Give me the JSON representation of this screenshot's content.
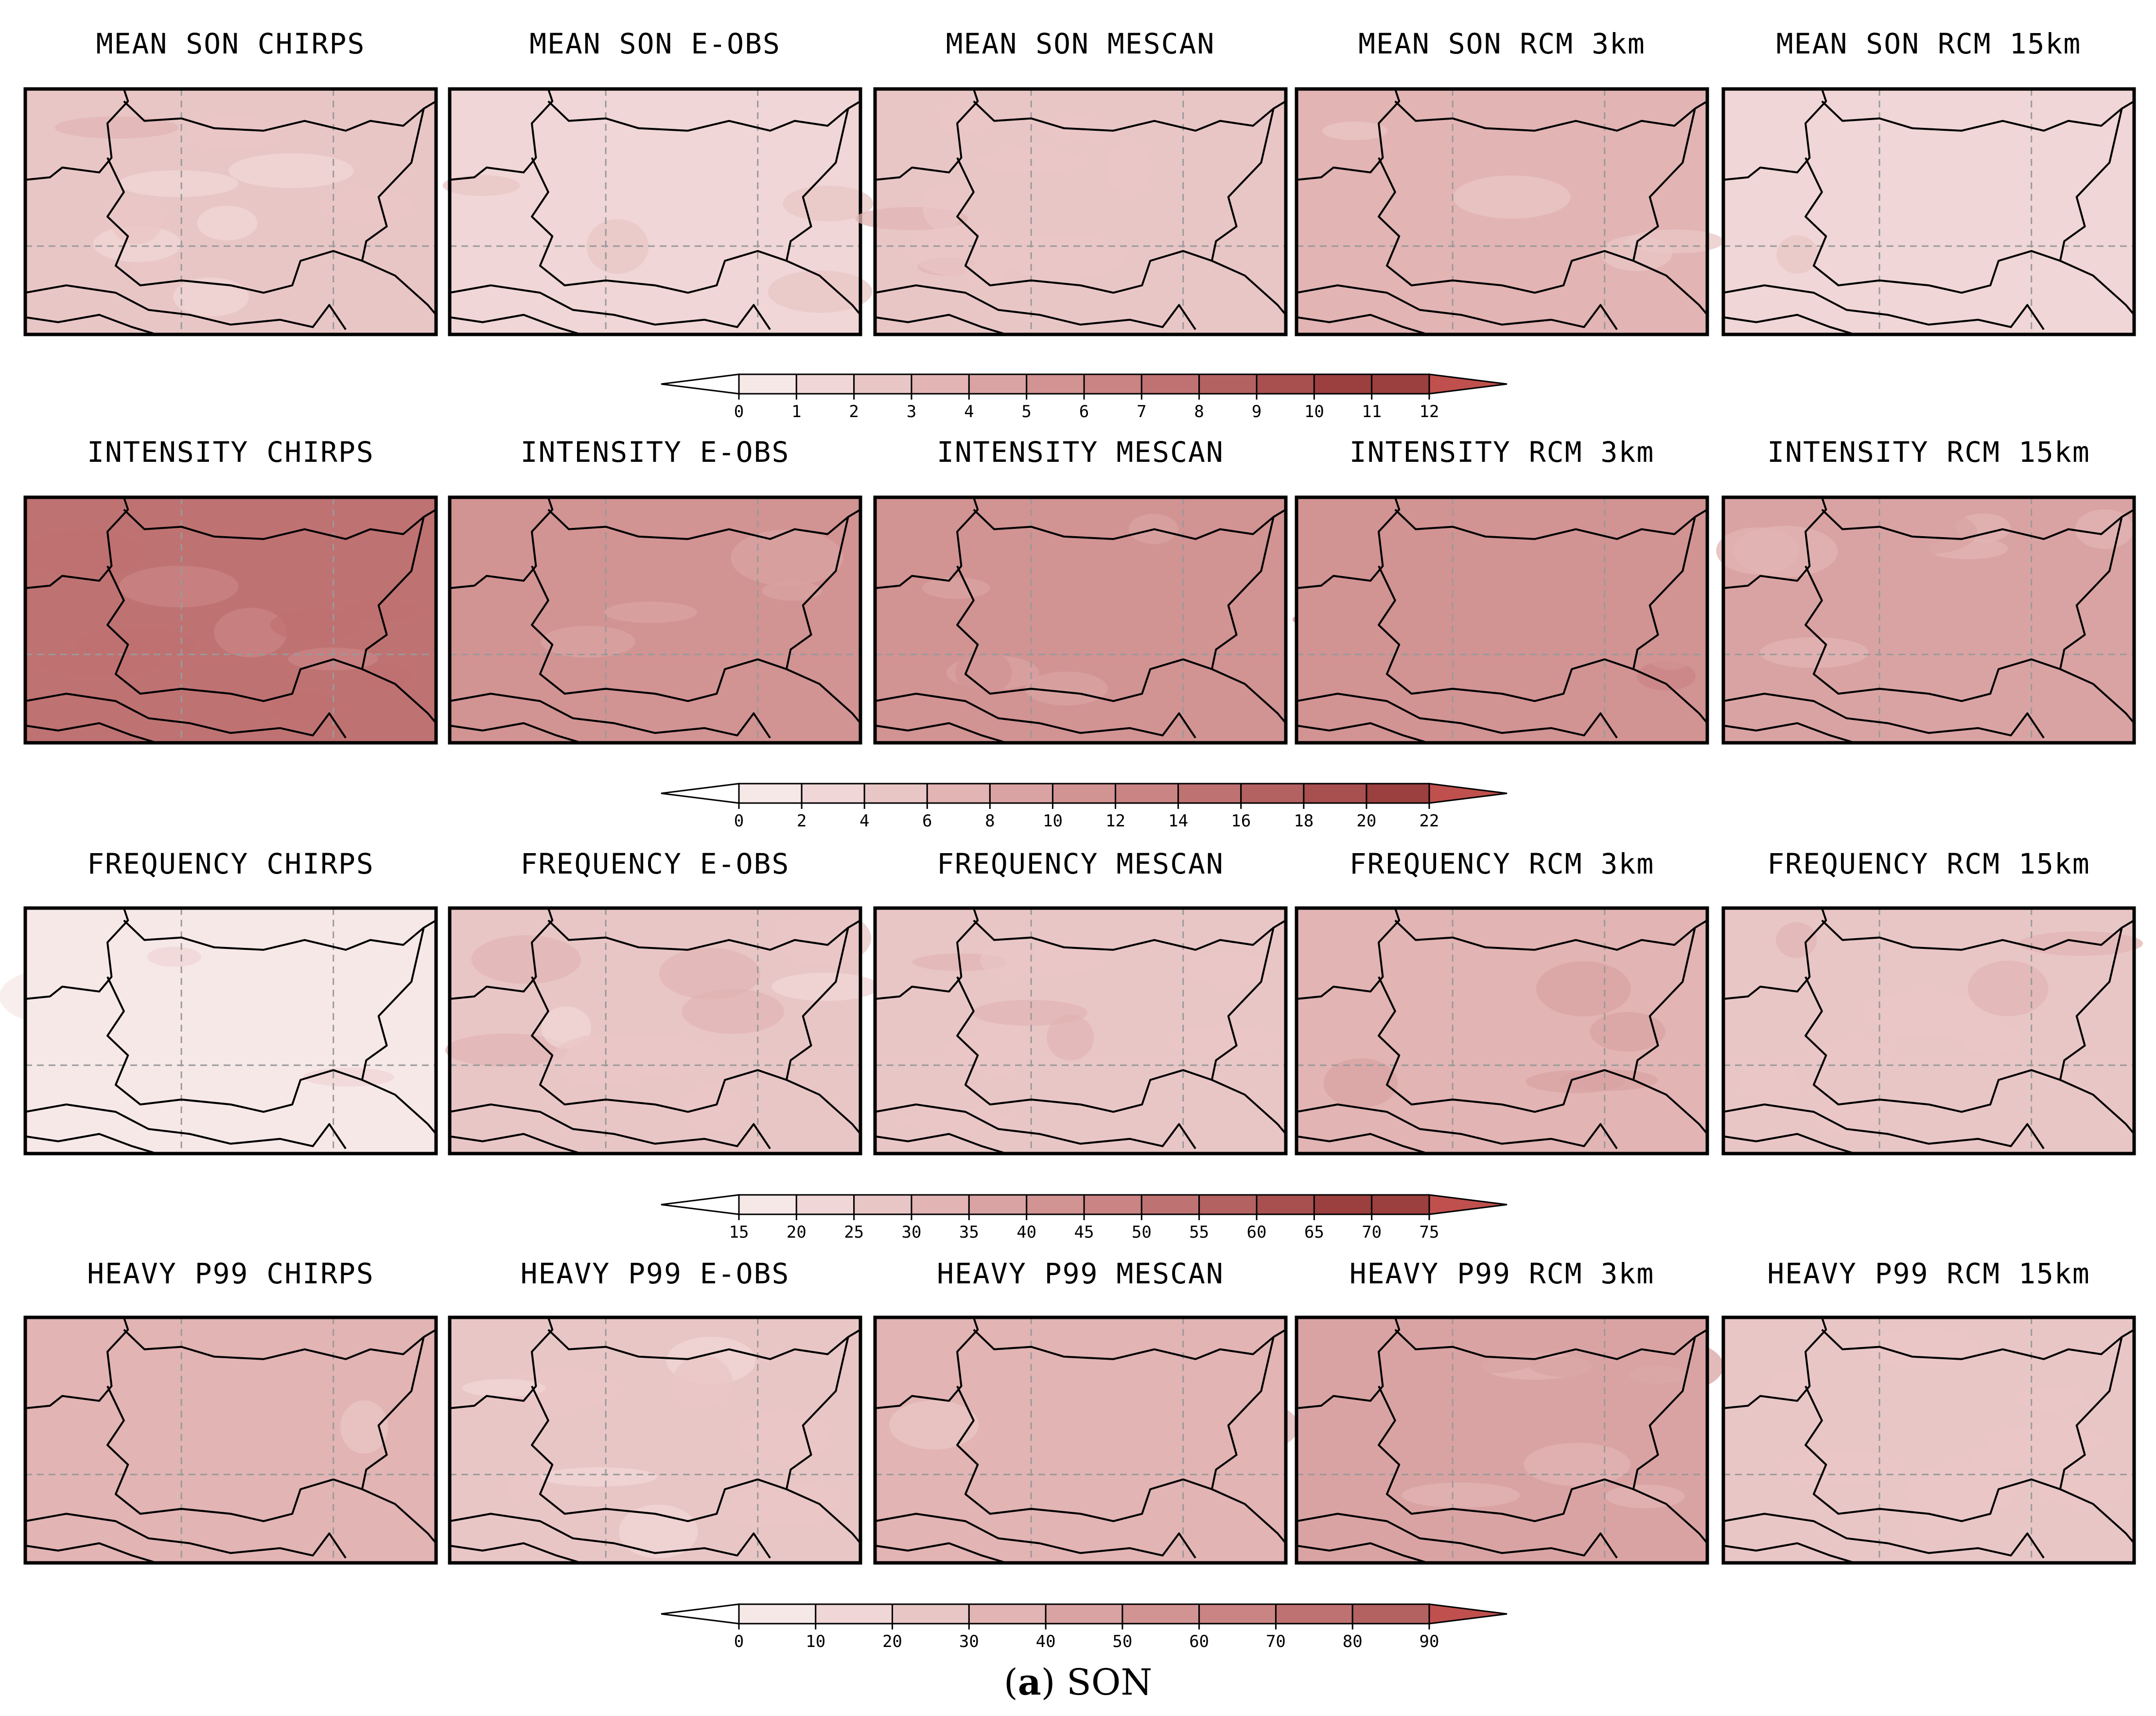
{
  "figure": {
    "caption_letter": "a",
    "caption_text": "SON",
    "colors": {
      "ramp": [
        "#ffffff",
        "#f7e8e8",
        "#f0d6d6",
        "#e9c6c6",
        "#e2b4b4",
        "#daa3a3",
        "#d29393",
        "#ca8484",
        "#bf7272",
        "#b46161",
        "#a84f4f",
        "#9c3f3f",
        "#c0504d"
      ],
      "border": "#000000",
      "grid": "#9a9a9a"
    }
  },
  "chart_data": [
    {
      "type": "heatmap",
      "row": "mean",
      "colorbar": {
        "ticks": [
          "0",
          "1",
          "2",
          "3",
          "4",
          "5",
          "6",
          "7",
          "8",
          "9",
          "10",
          "11",
          "12"
        ]
      },
      "panels": [
        {
          "title": "MEAN SON CHIRPS",
          "level": 2.2
        },
        {
          "title": "MEAN SON E-OBS",
          "level": 1.8
        },
        {
          "title": "MEAN SON MESCAN",
          "level": 2.4
        },
        {
          "title": "MEAN SON RCM 3km",
          "level": 3.0
        },
        {
          "title": "MEAN SON RCM 15km",
          "level": 1.7
        }
      ]
    },
    {
      "type": "heatmap",
      "row": "intensity",
      "colorbar": {
        "ticks": [
          "0",
          "2",
          "4",
          "6",
          "8",
          "10",
          "12",
          "14",
          "16",
          "18",
          "20",
          "22"
        ]
      },
      "panels": [
        {
          "title": "INTENSITY CHIRPS",
          "level": 14.0
        },
        {
          "title": "INTENSITY E-OBS",
          "level": 10.0
        },
        {
          "title": "INTENSITY MESCAN",
          "level": 10.0
        },
        {
          "title": "INTENSITY RCM 3km",
          "level": 10.5
        },
        {
          "title": "INTENSITY RCM 15km",
          "level": 8.0
        }
      ]
    },
    {
      "type": "heatmap",
      "row": "frequency",
      "colorbar": {
        "ticks": [
          "15",
          "20",
          "25",
          "30",
          "35",
          "40",
          "45",
          "50",
          "55",
          "60",
          "65",
          "70",
          "75"
        ]
      },
      "panels": [
        {
          "title": "FREQUENCY CHIRPS",
          "level": 18
        },
        {
          "title": "FREQUENCY E-OBS",
          "level": 27
        },
        {
          "title": "FREQUENCY MESCAN",
          "level": 28
        },
        {
          "title": "FREQUENCY RCM 3km",
          "level": 33
        },
        {
          "title": "FREQUENCY RCM 15km",
          "level": 27
        }
      ]
    },
    {
      "type": "heatmap",
      "row": "heavy",
      "colorbar": {
        "ticks": [
          "0",
          "10",
          "20",
          "30",
          "40",
          "50",
          "60",
          "70",
          "80",
          "90"
        ]
      },
      "panels": [
        {
          "title": "HEAVY P99 CHIRPS",
          "level": 33
        },
        {
          "title": "HEAVY P99 E-OBS",
          "level": 22
        },
        {
          "title": "HEAVY P99 MESCAN",
          "level": 32
        },
        {
          "title": "HEAVY P99 RCM 3km",
          "level": 40
        },
        {
          "title": "HEAVY P99 RCM 15km",
          "level": 24
        }
      ]
    }
  ]
}
